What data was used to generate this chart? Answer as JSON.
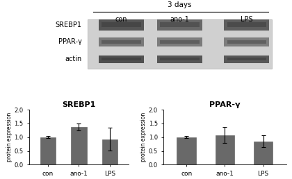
{
  "blot_panel": {
    "header_label": "3 days",
    "col_labels": [
      "con",
      "ano-1",
      "LPS"
    ],
    "row_labels": [
      "SREBP1",
      "PPAR-γ",
      "actin"
    ]
  },
  "srebp1": {
    "title": "SREBP1",
    "categories": [
      "con",
      "ano-1",
      "LPS"
    ],
    "values": [
      1.0,
      1.37,
      0.93
    ],
    "errors": [
      0.04,
      0.12,
      0.42
    ],
    "ylabel": "protein expression",
    "ylim": [
      0,
      2
    ],
    "yticks": [
      0,
      0.5,
      1.0,
      1.5,
      2.0
    ],
    "bar_color": "#696969"
  },
  "ppar": {
    "title": "PPAR-γ",
    "categories": [
      "con",
      "ano-1",
      "LPS"
    ],
    "values": [
      1.0,
      1.08,
      0.85
    ],
    "errors": [
      0.04,
      0.3,
      0.22
    ],
    "ylabel": "protein expression",
    "ylim": [
      0,
      2
    ],
    "yticks": [
      0,
      0.5,
      1.0,
      1.5,
      2.0
    ],
    "bar_color": "#696969"
  }
}
